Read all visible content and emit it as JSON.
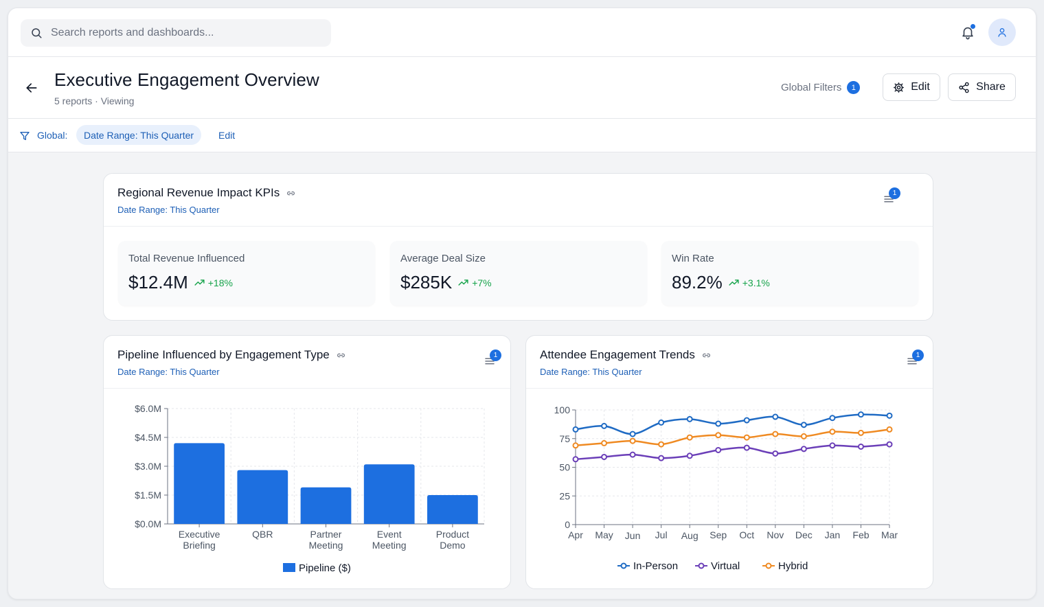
{
  "search": {
    "placeholder": "Search reports and dashboards..."
  },
  "header": {
    "title": "Executive Engagement Overview",
    "subtitle": "5 reports · Viewing",
    "global_filters_label": "Global Filters",
    "global_filters_count": "1",
    "edit_label": "Edit",
    "share_label": "Share"
  },
  "filter_bar": {
    "label": "Global:",
    "chip": "Date Range: This Quarter",
    "edit_label": "Edit"
  },
  "kpi_card": {
    "title": "Regional Revenue Impact KPIs",
    "filter_text": "Date Range: This Quarter",
    "filter_count": "1",
    "kpis": [
      {
        "label": "Total Revenue Influenced",
        "value": "$12.4M",
        "delta": "+18%"
      },
      {
        "label": "Average Deal Size",
        "value": "$285K",
        "delta": "+7%"
      },
      {
        "label": "Win Rate",
        "value": "89.2%",
        "delta": "+3.1%"
      }
    ]
  },
  "pipeline_card": {
    "title": "Pipeline Influenced by Engagement Type",
    "filter_text": "Date Range: This Quarter",
    "filter_count": "1"
  },
  "trends_card": {
    "title": "Attendee Engagement Trends",
    "filter_text": "Date Range: This Quarter",
    "filter_count": "1"
  },
  "colors": {
    "accent": "#1d6fe0",
    "positive": "#16a34a",
    "in_person": "#1f6bc4",
    "virtual": "#6b3fb8",
    "hybrid": "#ef8a22"
  },
  "chart_data": [
    {
      "type": "bar",
      "categories": [
        [
          "Executive",
          "Briefing"
        ],
        [
          "QBR"
        ],
        [
          "Partner",
          "Meeting"
        ],
        [
          "Event",
          "Meeting"
        ],
        [
          "Product",
          "Demo"
        ]
      ],
      "values": [
        4.2,
        2.8,
        1.9,
        3.1,
        1.5
      ],
      "yticks": [
        "$0.0M",
        "$1.5M",
        "$3.0M",
        "$4.5M",
        "$6.0M"
      ],
      "ylim": [
        0,
        6
      ],
      "series": [
        {
          "name": "Pipeline ($)"
        }
      ],
      "grid": true,
      "legend": "bottom"
    },
    {
      "type": "line",
      "x": [
        "Apr",
        "May",
        "Jun",
        "Jul",
        "Aug",
        "Sep",
        "Oct",
        "Nov",
        "Dec",
        "Jan",
        "Feb",
        "Mar"
      ],
      "yticks": [
        "0",
        "25",
        "50",
        "75",
        "100"
      ],
      "ylim": [
        0,
        100
      ],
      "grid": true,
      "legend": "bottom",
      "series": [
        {
          "name": "In-Person",
          "values": [
            83,
            86,
            79,
            89,
            92,
            88,
            91,
            94,
            87,
            93,
            96,
            95
          ]
        },
        {
          "name": "Virtual",
          "values": [
            57,
            59,
            61,
            58,
            60,
            65,
            67,
            62,
            66,
            69,
            68,
            70
          ]
        },
        {
          "name": "Hybrid",
          "values": [
            69,
            71,
            73,
            70,
            76,
            78,
            76,
            79,
            77,
            81,
            80,
            83
          ]
        }
      ]
    }
  ]
}
